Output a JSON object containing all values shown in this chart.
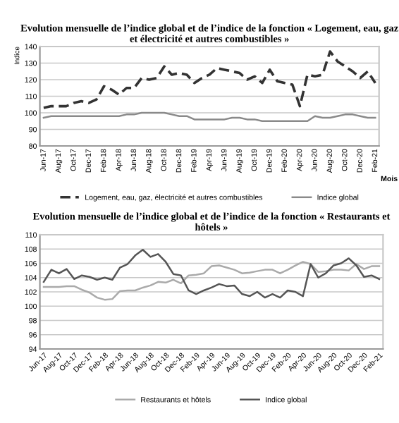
{
  "chart_data": [
    {
      "type": "line",
      "title": "Evolution mensuelle de l’indice global et de l’indice de la fonction « Logement, eau, gaz et électricité et autres combustibles »",
      "xlabel": "Mois",
      "ylabel": "Indice",
      "categories": [
        "Jun-17",
        null,
        "Aug-17",
        null,
        "Oct-17",
        null,
        "Dec-17",
        null,
        "Feb-18",
        null,
        "Apr-18",
        null,
        "Jun-18",
        null,
        "Aug-18",
        null,
        "Oct-18",
        null,
        "Dec-18",
        null,
        "Feb-19",
        null,
        "Apr-19",
        null,
        "Jun-19",
        null,
        "Aug-19",
        null,
        "Oct-19",
        null,
        "Dec-19",
        null,
        "Feb-20",
        null,
        "Apr-20",
        null,
        "Jun-20",
        null,
        "Aug-20",
        null,
        "Oct-20",
        null,
        "Dec-20",
        null,
        "Feb-21"
      ],
      "series": [
        {
          "name": "Logement, eau, gaz, électricité et autres combustibles",
          "color": "#333333",
          "line_style": "dashed",
          "values": [
            103,
            104,
            104,
            104,
            106,
            107,
            106,
            108,
            116,
            114,
            111,
            115,
            115,
            121,
            120,
            121,
            128,
            123,
            124,
            123,
            118,
            121,
            123,
            127,
            126,
            125,
            124,
            120,
            122,
            118,
            126,
            119,
            118,
            117,
            104,
            123,
            122,
            123,
            137,
            131,
            128,
            125,
            121,
            125,
            118
          ]
        },
        {
          "name": "Indice global",
          "color": "#8a8a8a",
          "line_style": "solid",
          "values": [
            97,
            98,
            98,
            98,
            98,
            98,
            98,
            98,
            98,
            98,
            98,
            99,
            99,
            100,
            100,
            100,
            100,
            99,
            98,
            98,
            96,
            96,
            96,
            96,
            96,
            97,
            97,
            96,
            96,
            95,
            95,
            95,
            95,
            95,
            95,
            95,
            98,
            97,
            97,
            98,
            99,
            99,
            98,
            97,
            97
          ]
        }
      ],
      "ylim": [
        80,
        140
      ],
      "yticks": [
        80,
        90,
        100,
        110,
        120,
        130,
        140
      ],
      "grid": "y",
      "legend": "bottom",
      "marker": "none"
    },
    {
      "type": "line",
      "title": "Evolution mensuelle de l’indice global et de l’indice de la fonction « Restaurants et hôtels »",
      "categories": [
        "Jun-17",
        null,
        "Aug-17",
        null,
        "Oct-17",
        null,
        "Dec-17",
        null,
        "Feb-18",
        null,
        "Apr-18",
        null,
        "Jun-18",
        null,
        "Aug-18",
        null,
        "Oct-18",
        null,
        "Dec-18",
        null,
        "Feb-19",
        null,
        "Apr-19",
        null,
        "Jun-19",
        null,
        "Aug-19",
        null,
        "Oct-19",
        null,
        "Dec-19",
        null,
        "Feb-20",
        null,
        "Apr-20",
        null,
        "Jun-20",
        null,
        "Aug-20",
        null,
        "Oct-20",
        null,
        "Dec-20",
        null,
        "Feb-21"
      ],
      "series": [
        {
          "name": "Restaurants et hôtels",
          "color": "#aaaaaa",
          "line_style": "solid",
          "values": [
            102.7,
            102.7,
            102.7,
            102.8,
            102.8,
            102.3,
            101.9,
            101.2,
            100.9,
            101,
            102.1,
            102.2,
            102.2,
            102.6,
            102.9,
            103.4,
            103.3,
            103.7,
            103.2,
            104.3,
            104.4,
            104.6,
            105.6,
            105.7,
            105.4,
            105.1,
            104.6,
            104.7,
            104.9,
            105.1,
            105.1,
            104.6,
            105.1,
            105.7,
            106.2,
            105.9,
            104.8,
            104.9,
            105.1,
            105.1,
            105,
            105.9,
            105.2,
            105.6,
            105.6
          ]
        },
        {
          "name": "Indice global",
          "color": "#555555",
          "line_style": "solid",
          "values": [
            103.4,
            105.1,
            104.6,
            105.2,
            103.8,
            104.3,
            104.1,
            103.7,
            104,
            103.7,
            105.4,
            105.9,
            107.1,
            107.9,
            106.9,
            107.3,
            106.2,
            104.5,
            104.3,
            102.2,
            101.7,
            102.2,
            102.6,
            103.1,
            102.8,
            102.9,
            101.7,
            101.4,
            102,
            101.2,
            101.7,
            101.2,
            102.2,
            102,
            101.4,
            105.9,
            104,
            104.6,
            105.7,
            106,
            106.7,
            105.7,
            104.1,
            104.3,
            103.8
          ]
        }
      ],
      "ylim": [
        94,
        110
      ],
      "yticks": [
        94,
        96,
        98,
        100,
        102,
        104,
        106,
        108,
        110
      ],
      "grid": "y",
      "legend": "bottom",
      "marker": "none"
    }
  ]
}
